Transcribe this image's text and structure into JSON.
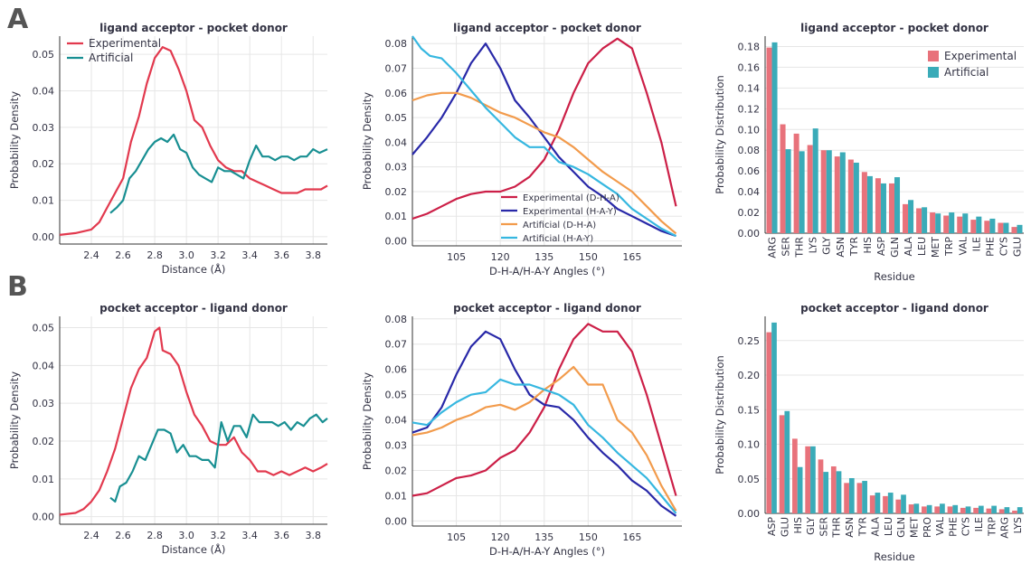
{
  "panel_labels": [
    "A",
    "B"
  ],
  "colors": {
    "experimental": "#e2394e",
    "artificial": "#188f92",
    "exp_dha": "#cc1f47",
    "exp_hay": "#2828a8",
    "art_dha": "#f29b4c",
    "art_hay": "#36b7e0",
    "bar_exp": "#e8727b",
    "bar_art": "#3aabb8",
    "grid": "#e6e6e6",
    "text": "#333344"
  },
  "chart_data": [
    {
      "type": "line",
      "title": "ligand acceptor - pocket donor",
      "xlabel": "Distance (Å)",
      "ylabel": "Probability Density",
      "xlim": [
        2.2,
        3.89
      ],
      "ylim": [
        -0.002,
        0.055
      ],
      "xticks": [
        2.4,
        2.6,
        2.8,
        3.0,
        3.2,
        3.4,
        3.6,
        3.8
      ],
      "xtick_labels": [
        "2.4",
        "2.6",
        "2.8",
        "3.0",
        "3.2",
        "3.4",
        "3.6",
        "3.8"
      ],
      "yticks": [
        0.0,
        0.01,
        0.02,
        0.03,
        0.04,
        0.05
      ],
      "ytick_labels": [
        "0.00",
        "0.01",
        "0.02",
        "0.03",
        "0.04",
        "0.05"
      ],
      "legend_position": "top-left",
      "series": [
        {
          "name": "Experimental",
          "color_key": "experimental",
          "x": [
            2.2,
            2.3,
            2.35,
            2.4,
            2.45,
            2.5,
            2.55,
            2.6,
            2.65,
            2.7,
            2.75,
            2.8,
            2.85,
            2.9,
            2.95,
            3.0,
            3.05,
            3.1,
            3.15,
            3.2,
            3.25,
            3.3,
            3.35,
            3.4,
            3.45,
            3.5,
            3.55,
            3.6,
            3.65,
            3.7,
            3.75,
            3.8,
            3.85,
            3.89
          ],
          "y": [
            0.0005,
            0.001,
            0.0015,
            0.002,
            0.004,
            0.008,
            0.012,
            0.016,
            0.026,
            0.033,
            0.042,
            0.049,
            0.052,
            0.051,
            0.046,
            0.04,
            0.032,
            0.03,
            0.025,
            0.021,
            0.019,
            0.018,
            0.018,
            0.016,
            0.015,
            0.014,
            0.013,
            0.012,
            0.012,
            0.012,
            0.013,
            0.013,
            0.013,
            0.014
          ]
        },
        {
          "name": "Artificial",
          "color_key": "artificial",
          "x": [
            2.52,
            2.56,
            2.6,
            2.64,
            2.68,
            2.72,
            2.76,
            2.8,
            2.84,
            2.88,
            2.92,
            2.96,
            3.0,
            3.04,
            3.08,
            3.12,
            3.16,
            3.2,
            3.24,
            3.28,
            3.32,
            3.36,
            3.4,
            3.44,
            3.48,
            3.52,
            3.56,
            3.6,
            3.64,
            3.68,
            3.72,
            3.76,
            3.8,
            3.84,
            3.89
          ],
          "y": [
            0.0065,
            0.008,
            0.01,
            0.016,
            0.018,
            0.021,
            0.024,
            0.026,
            0.027,
            0.026,
            0.028,
            0.024,
            0.023,
            0.019,
            0.017,
            0.016,
            0.015,
            0.019,
            0.018,
            0.018,
            0.017,
            0.016,
            0.021,
            0.025,
            0.022,
            0.022,
            0.021,
            0.022,
            0.022,
            0.021,
            0.022,
            0.022,
            0.024,
            0.023,
            0.024
          ]
        }
      ]
    },
    {
      "type": "line",
      "title": "ligand acceptor - pocket donor",
      "xlabel": "D-H-A/H-A-Y Angles (°)",
      "ylabel": "Probability Density",
      "xlim": [
        90,
        182
      ],
      "ylim": [
        -0.002,
        0.083
      ],
      "xticks": [
        105,
        120,
        135,
        150,
        165
      ],
      "xtick_labels": [
        "105",
        "120",
        "135",
        "150",
        "165"
      ],
      "yticks": [
        0.0,
        0.01,
        0.02,
        0.03,
        0.04,
        0.05,
        0.06,
        0.07,
        0.08
      ],
      "ytick_labels": [
        "0.00",
        "0.01",
        "0.02",
        "0.03",
        "0.04",
        "0.05",
        "0.06",
        "0.07",
        "0.08"
      ],
      "legend_position": "lower-center",
      "series": [
        {
          "name": "Experimental (D-H-A)",
          "color_key": "exp_dha",
          "x": [
            90,
            95,
            100,
            105,
            110,
            115,
            120,
            125,
            130,
            135,
            140,
            145,
            150,
            155,
            160,
            165,
            170,
            175,
            180
          ],
          "y": [
            0.009,
            0.011,
            0.014,
            0.017,
            0.019,
            0.02,
            0.02,
            0.022,
            0.026,
            0.033,
            0.045,
            0.06,
            0.072,
            0.078,
            0.082,
            0.078,
            0.06,
            0.04,
            0.014
          ]
        },
        {
          "name": "Experimental (H-A-Y)",
          "color_key": "exp_hay",
          "x": [
            90,
            95,
            100,
            105,
            110,
            115,
            120,
            125,
            130,
            135,
            140,
            145,
            150,
            155,
            160,
            165,
            170,
            175,
            180
          ],
          "y": [
            0.035,
            0.042,
            0.05,
            0.06,
            0.072,
            0.08,
            0.07,
            0.057,
            0.05,
            0.042,
            0.034,
            0.028,
            0.022,
            0.018,
            0.013,
            0.01,
            0.007,
            0.004,
            0.002
          ]
        },
        {
          "name": "Artificial (D-H-A)",
          "color_key": "art_dha",
          "x": [
            90,
            95,
            100,
            105,
            110,
            115,
            120,
            125,
            130,
            135,
            140,
            145,
            150,
            155,
            160,
            165,
            170,
            175,
            180
          ],
          "y": [
            0.057,
            0.059,
            0.06,
            0.06,
            0.058,
            0.055,
            0.052,
            0.05,
            0.047,
            0.044,
            0.042,
            0.038,
            0.033,
            0.028,
            0.024,
            0.02,
            0.014,
            0.008,
            0.003
          ]
        },
        {
          "name": "Artificial (H-A-Y)",
          "color_key": "art_hay",
          "x": [
            90,
            93,
            96,
            100,
            105,
            110,
            115,
            120,
            125,
            130,
            135,
            140,
            145,
            150,
            155,
            160,
            165,
            170,
            175,
            180
          ],
          "y": [
            0.083,
            0.078,
            0.075,
            0.074,
            0.068,
            0.061,
            0.054,
            0.048,
            0.042,
            0.038,
            0.038,
            0.032,
            0.03,
            0.027,
            0.023,
            0.019,
            0.013,
            0.009,
            0.005,
            0.002
          ]
        }
      ]
    },
    {
      "type": "bar",
      "title": "ligand acceptor - pocket donor",
      "xlabel": "Residue",
      "ylabel": "Probability Distribution",
      "ylim": [
        0,
        0.19
      ],
      "yticks": [
        0.0,
        0.02,
        0.04,
        0.06,
        0.08,
        0.1,
        0.12,
        0.14,
        0.16,
        0.18
      ],
      "ytick_labels": [
        "0.00",
        "0.02",
        "0.04",
        "0.06",
        "0.08",
        "0.10",
        "0.12",
        "0.14",
        "0.16",
        "0.18"
      ],
      "legend_position": "top-right",
      "categories": [
        "ARG",
        "SER",
        "THR",
        "LYS",
        "GLY",
        "ASN",
        "TYR",
        "HIS",
        "ASP",
        "GLN",
        "ALA",
        "LEU",
        "MET",
        "TRP",
        "VAL",
        "ILE",
        "PHE",
        "CYS",
        "GLU"
      ],
      "series": [
        {
          "name": "Experimental",
          "color_key": "bar_exp",
          "values": [
            0.179,
            0.105,
            0.096,
            0.085,
            0.08,
            0.074,
            0.071,
            0.059,
            0.053,
            0.048,
            0.028,
            0.024,
            0.02,
            0.017,
            0.016,
            0.013,
            0.012,
            0.01,
            0.006
          ]
        },
        {
          "name": "Artificial",
          "color_key": "bar_art",
          "values": [
            0.184,
            0.081,
            0.079,
            0.101,
            0.08,
            0.078,
            0.068,
            0.055,
            0.048,
            0.054,
            0.032,
            0.025,
            0.019,
            0.02,
            0.019,
            0.016,
            0.014,
            0.01,
            0.008
          ]
        }
      ]
    },
    {
      "type": "line",
      "title": "pocket acceptor - ligand donor",
      "xlabel": "Distance (Å)",
      "ylabel": "Probability Density",
      "xlim": [
        2.2,
        3.89
      ],
      "ylim": [
        -0.002,
        0.053
      ],
      "xticks": [
        2.4,
        2.6,
        2.8,
        3.0,
        3.2,
        3.4,
        3.6,
        3.8
      ],
      "xtick_labels": [
        "2.4",
        "2.6",
        "2.8",
        "3.0",
        "3.2",
        "3.4",
        "3.6",
        "3.8"
      ],
      "yticks": [
        0.0,
        0.01,
        0.02,
        0.03,
        0.04,
        0.05
      ],
      "ytick_labels": [
        "0.00",
        "0.01",
        "0.02",
        "0.03",
        "0.04",
        "0.05"
      ],
      "legend_position": "none",
      "series": [
        {
          "name": "Experimental",
          "color_key": "experimental",
          "x": [
            2.2,
            2.3,
            2.35,
            2.4,
            2.45,
            2.5,
            2.55,
            2.6,
            2.65,
            2.7,
            2.75,
            2.8,
            2.83,
            2.85,
            2.9,
            2.95,
            3.0,
            3.05,
            3.1,
            3.15,
            3.2,
            3.25,
            3.3,
            3.35,
            3.4,
            3.45,
            3.5,
            3.55,
            3.6,
            3.65,
            3.7,
            3.75,
            3.8,
            3.85,
            3.89
          ],
          "y": [
            0.0005,
            0.001,
            0.002,
            0.004,
            0.007,
            0.012,
            0.018,
            0.026,
            0.034,
            0.039,
            0.042,
            0.049,
            0.05,
            0.044,
            0.043,
            0.04,
            0.033,
            0.027,
            0.024,
            0.02,
            0.019,
            0.019,
            0.021,
            0.017,
            0.015,
            0.012,
            0.012,
            0.011,
            0.012,
            0.011,
            0.012,
            0.013,
            0.012,
            0.013,
            0.014
          ]
        },
        {
          "name": "Artificial",
          "color_key": "artificial",
          "x": [
            2.52,
            2.55,
            2.58,
            2.62,
            2.66,
            2.7,
            2.74,
            2.78,
            2.82,
            2.86,
            2.9,
            2.94,
            2.98,
            3.02,
            3.06,
            3.1,
            3.14,
            3.18,
            3.2,
            3.22,
            3.26,
            3.3,
            3.34,
            3.38,
            3.42,
            3.46,
            3.5,
            3.54,
            3.58,
            3.62,
            3.66,
            3.7,
            3.74,
            3.78,
            3.82,
            3.86,
            3.89
          ],
          "y": [
            0.005,
            0.004,
            0.008,
            0.009,
            0.012,
            0.016,
            0.015,
            0.019,
            0.023,
            0.023,
            0.022,
            0.017,
            0.019,
            0.016,
            0.016,
            0.015,
            0.015,
            0.013,
            0.019,
            0.025,
            0.02,
            0.024,
            0.024,
            0.021,
            0.027,
            0.025,
            0.025,
            0.025,
            0.024,
            0.025,
            0.023,
            0.025,
            0.024,
            0.026,
            0.027,
            0.025,
            0.026
          ]
        }
      ]
    },
    {
      "type": "line",
      "title": "pocket acceptor - ligand donor",
      "xlabel": "D-H-A/H-A-Y Angles (°)",
      "ylabel": "Probability Density",
      "xlim": [
        90,
        182
      ],
      "ylim": [
        -0.002,
        0.081
      ],
      "xticks": [
        105,
        120,
        135,
        150,
        165
      ],
      "xtick_labels": [
        "105",
        "120",
        "135",
        "150",
        "165"
      ],
      "yticks": [
        0.0,
        0.01,
        0.02,
        0.03,
        0.04,
        0.05,
        0.06,
        0.07,
        0.08
      ],
      "ytick_labels": [
        "0.00",
        "0.01",
        "0.02",
        "0.03",
        "0.04",
        "0.05",
        "0.06",
        "0.07",
        "0.08"
      ],
      "legend_position": "none",
      "series": [
        {
          "name": "Experimental (D-H-A)",
          "color_key": "exp_dha",
          "x": [
            90,
            95,
            100,
            105,
            110,
            115,
            120,
            125,
            130,
            135,
            140,
            145,
            150,
            155,
            160,
            165,
            170,
            175,
            180
          ],
          "y": [
            0.01,
            0.011,
            0.014,
            0.017,
            0.018,
            0.02,
            0.025,
            0.028,
            0.035,
            0.045,
            0.06,
            0.072,
            0.078,
            0.075,
            0.075,
            0.067,
            0.05,
            0.03,
            0.01
          ]
        },
        {
          "name": "Experimental (H-A-Y)",
          "color_key": "exp_hay",
          "x": [
            90,
            95,
            100,
            105,
            110,
            115,
            120,
            125,
            130,
            135,
            140,
            145,
            150,
            155,
            160,
            165,
            170,
            175,
            180
          ],
          "y": [
            0.035,
            0.037,
            0.045,
            0.058,
            0.069,
            0.075,
            0.072,
            0.06,
            0.05,
            0.046,
            0.045,
            0.04,
            0.033,
            0.027,
            0.022,
            0.016,
            0.012,
            0.006,
            0.002
          ]
        },
        {
          "name": "Artificial (D-H-A)",
          "color_key": "art_dha",
          "x": [
            90,
            95,
            100,
            105,
            110,
            115,
            120,
            125,
            130,
            135,
            140,
            145,
            150,
            155,
            160,
            165,
            170,
            175,
            180
          ],
          "y": [
            0.034,
            0.035,
            0.037,
            0.04,
            0.042,
            0.045,
            0.046,
            0.044,
            0.047,
            0.052,
            0.056,
            0.061,
            0.054,
            0.054,
            0.04,
            0.035,
            0.026,
            0.014,
            0.004
          ]
        },
        {
          "name": "Artificial (H-A-Y)",
          "color_key": "art_hay",
          "x": [
            90,
            95,
            100,
            105,
            110,
            115,
            120,
            125,
            130,
            135,
            140,
            145,
            150,
            155,
            160,
            165,
            170,
            175,
            180
          ],
          "y": [
            0.039,
            0.038,
            0.043,
            0.047,
            0.05,
            0.051,
            0.056,
            0.054,
            0.054,
            0.052,
            0.05,
            0.046,
            0.038,
            0.033,
            0.027,
            0.022,
            0.017,
            0.01,
            0.003
          ]
        }
      ]
    },
    {
      "type": "bar",
      "title": "pocket acceptor - ligand donor",
      "xlabel": "Residue",
      "ylabel": "Probability Distribution",
      "ylim": [
        0,
        0.285
      ],
      "yticks": [
        0.0,
        0.05,
        0.1,
        0.15,
        0.2,
        0.25
      ],
      "ytick_labels": [
        "0.00",
        "0.05",
        "0.10",
        "0.15",
        "0.20",
        "0.25"
      ],
      "legend_position": "none",
      "categories": [
        "ASP",
        "GLU",
        "HIS",
        "GLY",
        "SER",
        "THR",
        "ASN",
        "TYR",
        "ALA",
        "LEU",
        "GLN",
        "MET",
        "PRO",
        "VAL",
        "PHE",
        "CYS",
        "ILE",
        "TRP",
        "ARG",
        "LYS"
      ],
      "series": [
        {
          "name": "Experimental",
          "color_key": "bar_exp",
          "values": [
            0.262,
            0.142,
            0.108,
            0.097,
            0.078,
            0.068,
            0.044,
            0.044,
            0.026,
            0.025,
            0.02,
            0.013,
            0.01,
            0.01,
            0.01,
            0.008,
            0.008,
            0.007,
            0.006,
            0.004
          ]
        },
        {
          "name": "Artificial",
          "color_key": "bar_art",
          "values": [
            0.276,
            0.148,
            0.067,
            0.097,
            0.06,
            0.061,
            0.051,
            0.047,
            0.03,
            0.03,
            0.027,
            0.014,
            0.012,
            0.014,
            0.012,
            0.01,
            0.011,
            0.011,
            0.009,
            0.009
          ]
        }
      ]
    }
  ]
}
